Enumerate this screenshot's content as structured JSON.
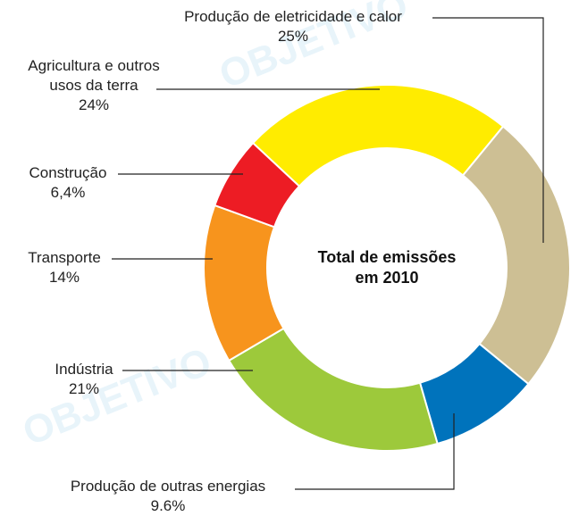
{
  "chart_data": {
    "type": "donut",
    "title": "Total de emissões\nem 2010",
    "categories": [
      "Agricultura e outros\nusos da terra",
      "Produção de eletricidade e calor",
      "Produção de outras energias",
      "Indústria",
      "Transporte",
      "Construção"
    ],
    "values": [
      24,
      25,
      9.6,
      21,
      14,
      6.4
    ],
    "value_labels": [
      "24%",
      "25%",
      "9.6%",
      "21%",
      "14%",
      "6,4%"
    ],
    "colors": [
      "#ffec00",
      "#cdbf94",
      "#0073bc",
      "#9dc93b",
      "#f7941d",
      "#ed1c24"
    ],
    "watermark": "OBJETIVO"
  }
}
